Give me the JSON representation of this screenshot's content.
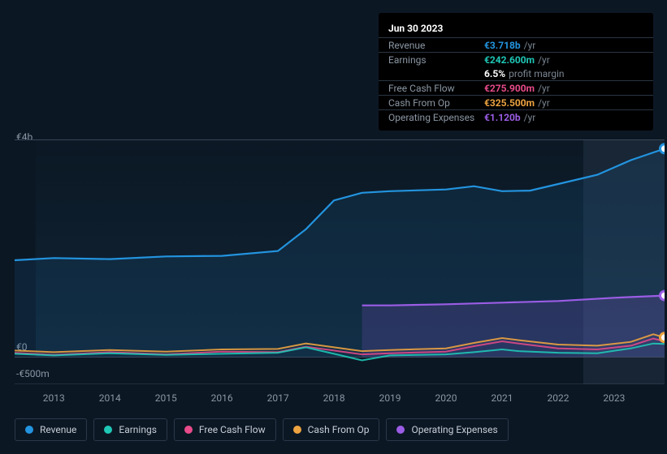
{
  "tooltip": {
    "date": "Jun 30 2023",
    "rows": [
      {
        "label": "Revenue",
        "value": "€3.718b",
        "suffix": "/yr",
        "color": "#2394df"
      },
      {
        "label": "Earnings",
        "value": "€242.600m",
        "suffix": "/yr",
        "color": "#1fc7b6"
      },
      {
        "label": "",
        "value": "6.5%",
        "suffix": "profit margin",
        "color": "#ffffff",
        "noBorder": true
      },
      {
        "label": "Free Cash Flow",
        "value": "€275.900m",
        "suffix": "/yr",
        "color": "#e84b8a"
      },
      {
        "label": "Cash From Op",
        "value": "€325.500m",
        "suffix": "/yr",
        "color": "#eda340"
      },
      {
        "label": "Operating Expenses",
        "value": "€1.120b",
        "suffix": "/yr",
        "color": "#9b5de5"
      }
    ]
  },
  "chart": {
    "background": "#0c1724",
    "plot_bg_gradient": [
      "#0c1824",
      "#0f2436"
    ],
    "axis_color": "#3a4657",
    "future_band_x": 700,
    "future_band_color": "rgba(60,80,105,0.25)",
    "y_axis": {
      "labels": [
        {
          "text": "€4b",
          "y": 0
        },
        {
          "text": "€0",
          "y": 259
        },
        {
          "text": "-€500m",
          "y": 292
        }
      ]
    },
    "x_axis": {
      "years": [
        "2013",
        "2014",
        "2015",
        "2016",
        "2017",
        "2018",
        "2019",
        "2020",
        "2021",
        "2022",
        "2023"
      ],
      "start_year": 2012.3,
      "end_year": 2023.9
    },
    "series": {
      "revenue": {
        "color": "#2394df",
        "fill": "rgba(35,148,223,0.10)",
        "points": [
          [
            2012.3,
            1780
          ],
          [
            2013,
            1820
          ],
          [
            2014,
            1800
          ],
          [
            2015,
            1850
          ],
          [
            2016,
            1860
          ],
          [
            2017,
            1950
          ],
          [
            2017.5,
            2350
          ],
          [
            2018,
            2880
          ],
          [
            2018.5,
            3020
          ],
          [
            2019,
            3050
          ],
          [
            2020,
            3080
          ],
          [
            2020.5,
            3140
          ],
          [
            2021,
            3050
          ],
          [
            2021.5,
            3060
          ],
          [
            2022,
            3180
          ],
          [
            2022.7,
            3350
          ],
          [
            2023.3,
            3620
          ],
          [
            2023.9,
            3830
          ]
        ]
      },
      "operating_expenses": {
        "color": "#9b5de5",
        "fill": "rgba(155,93,229,0.18)",
        "start": 2018.5,
        "points": [
          [
            2018.5,
            950
          ],
          [
            2019,
            950
          ],
          [
            2020,
            970
          ],
          [
            2021,
            1000
          ],
          [
            2022,
            1030
          ],
          [
            2023,
            1090
          ],
          [
            2023.9,
            1130
          ]
        ]
      },
      "cash_from_op": {
        "color": "#eda340",
        "points": [
          [
            2012.3,
            120
          ],
          [
            2013,
            90
          ],
          [
            2014,
            130
          ],
          [
            2015,
            100
          ],
          [
            2016,
            140
          ],
          [
            2017,
            150
          ],
          [
            2017.5,
            250
          ],
          [
            2018,
            180
          ],
          [
            2018.5,
            110
          ],
          [
            2019,
            130
          ],
          [
            2020,
            160
          ],
          [
            2020.5,
            260
          ],
          [
            2021,
            350
          ],
          [
            2021.3,
            310
          ],
          [
            2022,
            230
          ],
          [
            2022.7,
            210
          ],
          [
            2023.3,
            280
          ],
          [
            2023.7,
            420
          ],
          [
            2023.9,
            360
          ]
        ]
      },
      "free_cash_flow": {
        "color": "#e84b8a",
        "points": [
          [
            2012.3,
            80
          ],
          [
            2013,
            40
          ],
          [
            2014,
            90
          ],
          [
            2015,
            50
          ],
          [
            2016,
            100
          ],
          [
            2017,
            90
          ],
          [
            2017.5,
            190
          ],
          [
            2018,
            120
          ],
          [
            2018.5,
            50
          ],
          [
            2019,
            70
          ],
          [
            2020,
            100
          ],
          [
            2020.5,
            200
          ],
          [
            2021,
            290
          ],
          [
            2021.3,
            250
          ],
          [
            2022,
            160
          ],
          [
            2022.7,
            140
          ],
          [
            2023.3,
            210
          ],
          [
            2023.7,
            340
          ],
          [
            2023.9,
            290
          ]
        ]
      },
      "earnings": {
        "color": "#1fc7b6",
        "points": [
          [
            2012.3,
            60
          ],
          [
            2013,
            30
          ],
          [
            2014,
            70
          ],
          [
            2015,
            40
          ],
          [
            2016,
            60
          ],
          [
            2017,
            80
          ],
          [
            2017.5,
            180
          ],
          [
            2018,
            60
          ],
          [
            2018.5,
            -60
          ],
          [
            2019,
            30
          ],
          [
            2020,
            50
          ],
          [
            2020.5,
            90
          ],
          [
            2021,
            140
          ],
          [
            2021.3,
            110
          ],
          [
            2022,
            80
          ],
          [
            2022.7,
            70
          ],
          [
            2023.3,
            160
          ],
          [
            2023.7,
            250
          ],
          [
            2023.9,
            240
          ]
        ]
      }
    },
    "markers": [
      {
        "series": "revenue",
        "x": 2023.9,
        "color": "#2394df"
      },
      {
        "series": "operating_expenses",
        "x": 2023.9,
        "color": "#9b5de5"
      },
      {
        "series": "cash_from_op",
        "x": 2023.9,
        "color": "#eda340"
      }
    ],
    "value_range": {
      "min": -500,
      "max": 4000
    }
  },
  "legend": [
    {
      "label": "Revenue",
      "color": "#2394df"
    },
    {
      "label": "Earnings",
      "color": "#1fc7b6"
    },
    {
      "label": "Free Cash Flow",
      "color": "#e84b8a"
    },
    {
      "label": "Cash From Op",
      "color": "#eda340"
    },
    {
      "label": "Operating Expenses",
      "color": "#9b5de5"
    }
  ]
}
